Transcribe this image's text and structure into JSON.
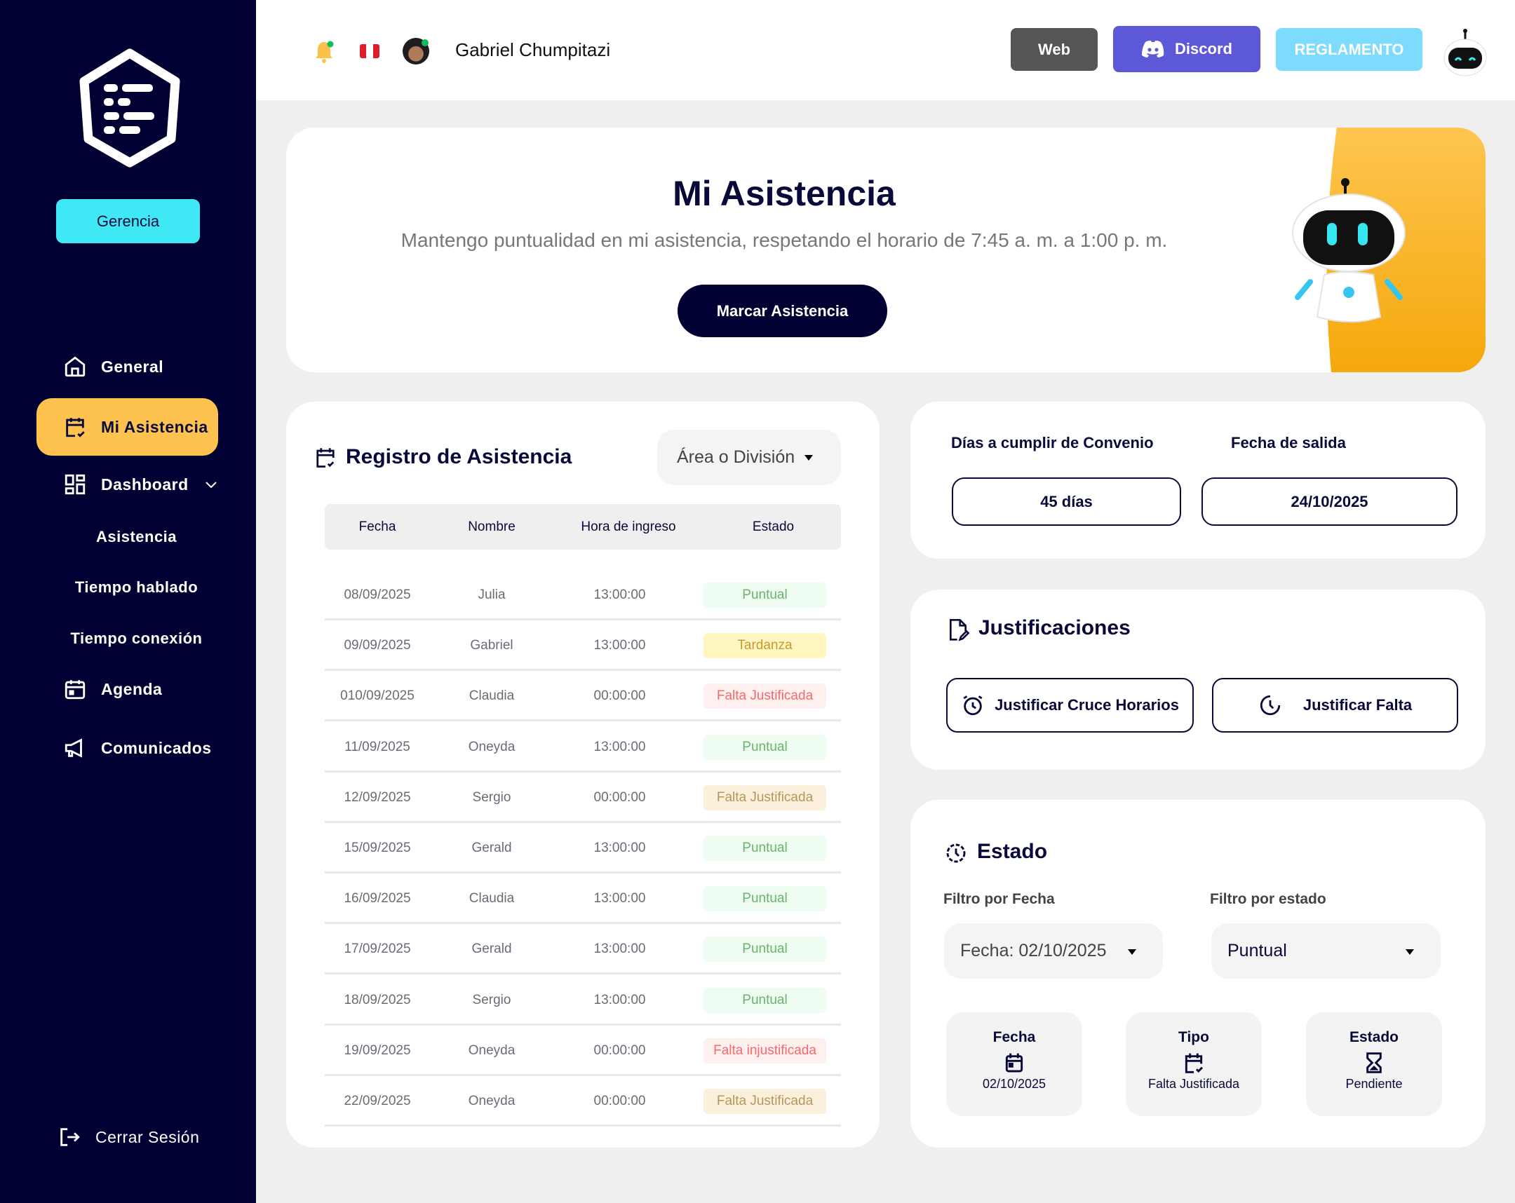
{
  "sidebar": {
    "role_button": "Gerencia",
    "items": [
      {
        "label": "General",
        "icon": "home-icon"
      },
      {
        "label": "Mi Asistencia",
        "icon": "calendar-check-icon",
        "active": true
      },
      {
        "label": "Dashboard",
        "icon": "dashboard-icon"
      },
      {
        "label": "Asistencia"
      },
      {
        "label": "Tiempo hablado"
      },
      {
        "label": "Tiempo conexión"
      },
      {
        "label": "Agenda",
        "icon": "calendar-icon"
      },
      {
        "label": "Comunicados",
        "icon": "megaphone-icon"
      }
    ],
    "logout": "Cerrar Sesión"
  },
  "header": {
    "user_name": "Gabriel Chumpitazi",
    "web": "Web",
    "discord": "Discord",
    "reglamento": "REGLAMENTO"
  },
  "colors": {
    "sidebar": "#000033",
    "accent_yellow": "#fec34e",
    "accent_cyan": "#3fe8f5",
    "discord": "#5c58d8",
    "reglamento": "#7ddbfd",
    "web": "#555555"
  },
  "hero": {
    "title": "Mi Asistencia",
    "subtitle": "Mantengo puntualidad en mi asistencia, respetando el horario de 7:45 a. m. a 1:00 p. m.",
    "button": "Marcar Asistencia"
  },
  "registro": {
    "title": "Registro de Asistencia",
    "filter": "Área o División",
    "columns": [
      "Fecha",
      "Nombre",
      "Hora de ingreso",
      "Estado"
    ],
    "rows": [
      {
        "fecha": "08/09/2025",
        "nombre": "Julia",
        "hora": "13:00:00",
        "estado": "Puntual",
        "tone": "green"
      },
      {
        "fecha": "09/09/2025",
        "nombre": "Gabriel",
        "hora": "13:00:00",
        "estado": "Tardanza",
        "tone": "yellow"
      },
      {
        "fecha": "010/09/2025",
        "nombre": "Claudia",
        "hora": "00:00:00",
        "estado": "Falta Justificada",
        "tone": "red"
      },
      {
        "fecha": "11/09/2025",
        "nombre": "Oneyda",
        "hora": "13:00:00",
        "estado": "Puntual",
        "tone": "green"
      },
      {
        "fecha": "12/09/2025",
        "nombre": "Sergio",
        "hora": "00:00:00",
        "estado": "Falta Justificada",
        "tone": "beige"
      },
      {
        "fecha": "15/09/2025",
        "nombre": "Gerald",
        "hora": "13:00:00",
        "estado": "Puntual",
        "tone": "green"
      },
      {
        "fecha": "16/09/2025",
        "nombre": "Claudia",
        "hora": "13:00:00",
        "estado": "Puntual",
        "tone": "green"
      },
      {
        "fecha": "17/09/2025",
        "nombre": "Gerald",
        "hora": "13:00:00",
        "estado": "Puntual",
        "tone": "green"
      },
      {
        "fecha": "18/09/2025",
        "nombre": "Sergio",
        "hora": "13:00:00",
        "estado": "Puntual",
        "tone": "green"
      },
      {
        "fecha": "19/09/2025",
        "nombre": "Oneyda",
        "hora": "00:00:00",
        "estado": "Falta injustificada",
        "tone": "red"
      },
      {
        "fecha": "22/09/2025",
        "nombre": "Oneyda",
        "hora": "00:00:00",
        "estado": "Falta Justificada",
        "tone": "beige"
      }
    ]
  },
  "convenio": {
    "dias_label": "Días a cumplir de Convenio",
    "dias_value": "45 días",
    "salida_label": "Fecha de salida",
    "salida_value": "24/10/2025"
  },
  "justificaciones": {
    "title": "Justificaciones",
    "cruce": "Justificar Cruce Horarios",
    "falta": "Justificar Falta"
  },
  "estado": {
    "title": "Estado",
    "filtro_fecha_label": "Filtro por Fecha",
    "filtro_fecha_value": "Fecha: 02/10/2025",
    "filtro_estado_label": "Filtro por estado",
    "filtro_estado_value": "Puntual",
    "cards": [
      {
        "title": "Fecha",
        "value": "02/10/2025"
      },
      {
        "title": "Tipo",
        "value": "Falta Justificada"
      },
      {
        "title": "Estado",
        "value": "Pendiente"
      }
    ]
  }
}
